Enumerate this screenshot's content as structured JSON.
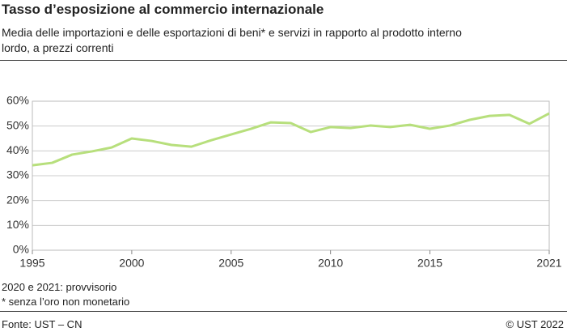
{
  "chart_data": {
    "type": "line",
    "title": "Tasso d’esposizione al commercio internazionale",
    "subtitle": "Media delle importazioni e delle esportazioni di beni* e servizi in rapporto al prodotto interno lordo, a prezzi correnti",
    "x": [
      1995,
      1996,
      1997,
      1998,
      1999,
      2000,
      2001,
      2002,
      2003,
      2004,
      2005,
      2006,
      2007,
      2008,
      2009,
      2010,
      2011,
      2012,
      2013,
      2014,
      2015,
      2016,
      2017,
      2018,
      2019,
      2020,
      2021
    ],
    "series": [
      {
        "color": "#b7df7c",
        "values": [
          34.2,
          35.2,
          38.5,
          39.8,
          41.4,
          45.0,
          44.0,
          42.4,
          41.7,
          44.3,
          46.6,
          48.9,
          51.5,
          51.2,
          47.6,
          49.6,
          49.2,
          50.2,
          49.6,
          50.5,
          48.9,
          50.2,
          52.5,
          54.1,
          54.5,
          50.9,
          55.1
        ]
      }
    ],
    "xlim": [
      1995,
      2021
    ],
    "xticks": [
      1995,
      2000,
      2005,
      2010,
      2015,
      2021
    ],
    "ylim": [
      0,
      60
    ],
    "yticks": [
      {
        "value": 0,
        "label": "0%"
      },
      {
        "value": 10,
        "label": "10%"
      },
      {
        "value": 20,
        "label": "20%"
      },
      {
        "value": 30,
        "label": "30%"
      },
      {
        "value": 40,
        "label": "40%"
      },
      {
        "value": 50,
        "label": "50%"
      },
      {
        "value": 60,
        "label": "60%"
      }
    ],
    "grid": true,
    "notes": [
      "2020 e 2021: provvisorio",
      "* senza l’oro non monetario"
    ],
    "source": "Fonte: UST – CN",
    "copyright": "© UST 2022"
  }
}
